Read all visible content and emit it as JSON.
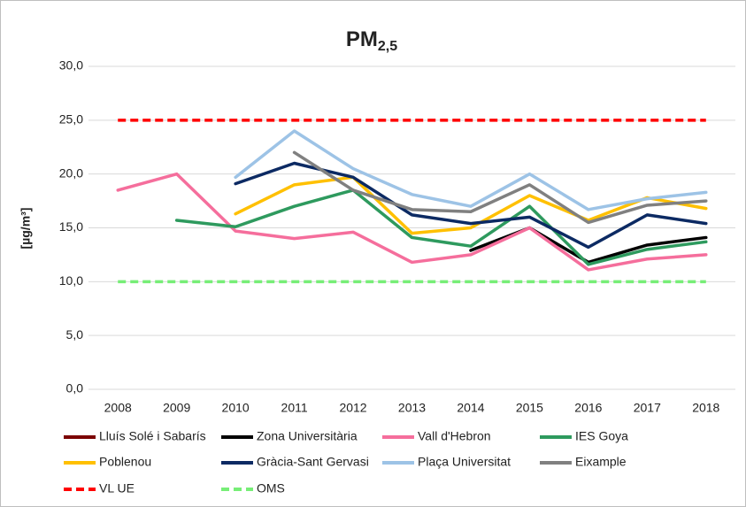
{
  "chart_data": {
    "type": "line",
    "title": "PM",
    "title_subscript": "2,5",
    "y_label": "[µg/m³]",
    "categories": [
      "2008",
      "2009",
      "2010",
      "2011",
      "2012",
      "2013",
      "2014",
      "2015",
      "2016",
      "2017",
      "2018"
    ],
    "ylim": [
      0,
      30
    ],
    "yticks": [
      {
        "value": 0,
        "label": "0,0"
      },
      {
        "value": 5,
        "label": "5,0"
      },
      {
        "value": 10,
        "label": "10,0"
      },
      {
        "value": 15,
        "label": "15,0"
      },
      {
        "value": 20,
        "label": "20,0"
      },
      {
        "value": 25,
        "label": "25,0"
      },
      {
        "value": 30,
        "label": "30,0"
      }
    ],
    "grid": true,
    "legend": "bottom",
    "series": [
      {
        "name": "Lluís Solé i Sabarís",
        "color": "#7b0000",
        "dash": false,
        "values": [
          null,
          null,
          null,
          null,
          null,
          null,
          null,
          null,
          null,
          null,
          null
        ]
      },
      {
        "name": "Zona Universitària",
        "color": "#000000",
        "dash": false,
        "values": [
          null,
          null,
          null,
          null,
          null,
          null,
          12.9,
          15.0,
          11.8,
          13.4,
          14.1
        ]
      },
      {
        "name": "Vall d'Hebron",
        "color": "#f56e9c",
        "dash": false,
        "values": [
          18.5,
          20.0,
          14.7,
          14.0,
          14.6,
          11.8,
          12.5,
          15.0,
          11.1,
          12.1,
          12.5
        ]
      },
      {
        "name": "IES Goya",
        "color": "#2e9a5e",
        "dash": false,
        "values": [
          null,
          15.7,
          15.1,
          17.0,
          18.5,
          14.1,
          13.3,
          17.0,
          11.6,
          13.0,
          13.7
        ]
      },
      {
        "name": "Poblenou",
        "color": "#ffc000",
        "dash": false,
        "values": [
          null,
          null,
          16.3,
          19.0,
          19.7,
          14.5,
          15.0,
          18.0,
          15.7,
          17.8,
          16.8
        ]
      },
      {
        "name": "Gràcia-Sant Gervasi",
        "color": "#0c2a63",
        "dash": false,
        "values": [
          null,
          null,
          19.1,
          21.0,
          19.7,
          16.2,
          15.4,
          16.0,
          13.2,
          16.2,
          15.4
        ]
      },
      {
        "name": "Plaça Universitat",
        "color": "#9dc3e6",
        "dash": false,
        "values": [
          null,
          null,
          19.7,
          24.0,
          20.5,
          18.1,
          17.0,
          20.0,
          16.7,
          17.7,
          18.3
        ]
      },
      {
        "name": "Eixample",
        "color": "#808080",
        "dash": false,
        "values": [
          null,
          null,
          null,
          22.0,
          18.5,
          16.7,
          16.5,
          19.0,
          15.5,
          17.1,
          17.5
        ]
      },
      {
        "name": "VL UE",
        "color": "#ff0000",
        "dash": true,
        "values": [
          25,
          25,
          25,
          25,
          25,
          25,
          25,
          25,
          25,
          25,
          25
        ]
      },
      {
        "name": "OMS",
        "color": "#77ee77",
        "dash": true,
        "values": [
          10,
          10,
          10,
          10,
          10,
          10,
          10,
          10,
          10,
          10,
          10
        ]
      }
    ]
  }
}
